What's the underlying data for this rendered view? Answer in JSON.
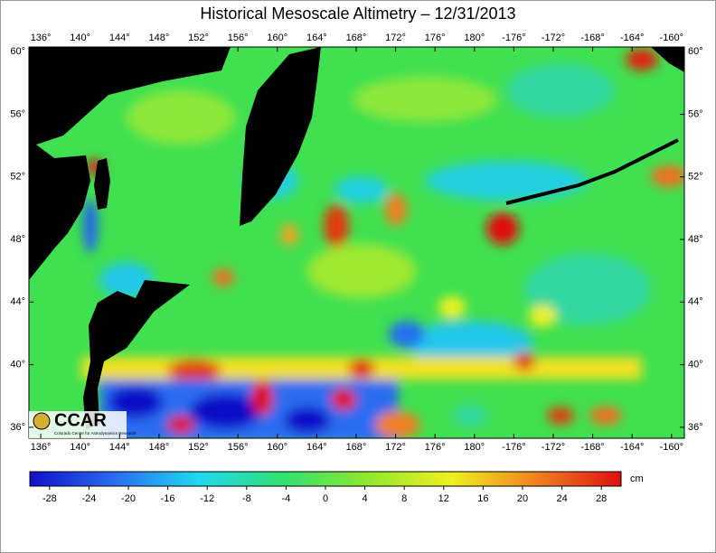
{
  "title": "Historical Mesoscale Altimetry – 12/31/2013",
  "map": {
    "lonlim": [
      134.8,
      201.3
    ],
    "latlim": [
      35.3,
      60.3
    ],
    "lonticks": [
      {
        "value": 136,
        "label": "136°"
      },
      {
        "value": 140,
        "label": "140°"
      },
      {
        "value": 144,
        "label": "144°"
      },
      {
        "value": 148,
        "label": "148°"
      },
      {
        "value": 152,
        "label": "152°"
      },
      {
        "value": 156,
        "label": "156°"
      },
      {
        "value": 160,
        "label": "160°"
      },
      {
        "value": 164,
        "label": "164°"
      },
      {
        "value": 168,
        "label": "168°"
      },
      {
        "value": 172,
        "label": "172°"
      },
      {
        "value": 176,
        "label": "176°"
      },
      {
        "value": 180,
        "label": "180°"
      },
      {
        "value": -176,
        "label": "-176°"
      },
      {
        "value": -172,
        "label": "-172°"
      },
      {
        "value": -168,
        "label": "-168°"
      },
      {
        "value": -164,
        "label": "-164°"
      },
      {
        "value": -160,
        "label": "-160°"
      }
    ],
    "latticks": [
      {
        "value": 36,
        "label": "36°"
      },
      {
        "value": 40,
        "label": "40°"
      },
      {
        "value": 44,
        "label": "44°"
      },
      {
        "value": 48,
        "label": "48°"
      },
      {
        "value": 52,
        "label": "52°"
      },
      {
        "value": 56,
        "label": "56°"
      },
      {
        "value": 60,
        "label": "60°"
      }
    ]
  },
  "colorbar": {
    "lim": [
      -30,
      30
    ],
    "ticks": [
      -28,
      -24,
      -20,
      -16,
      -12,
      -8,
      -4,
      0,
      4,
      8,
      12,
      16,
      20,
      24,
      28
    ],
    "unit": "cm",
    "colors": [
      "#1010c8",
      "#2a6cf0",
      "#20d8f0",
      "#30e070",
      "#90e830",
      "#f0f020",
      "#f08020",
      "#e01010"
    ]
  },
  "logo": {
    "name": "CCAR",
    "subtitle": "Colorado Center for Astrodynamics Research"
  }
}
